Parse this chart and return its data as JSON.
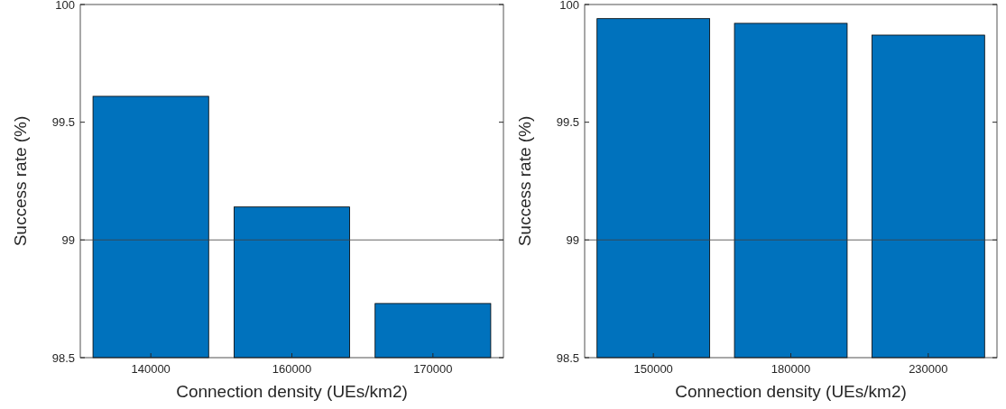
{
  "chart_data": [
    {
      "type": "bar",
      "categories": [
        "140000",
        "160000",
        "170000"
      ],
      "values": [
        99.61,
        99.14,
        98.73
      ],
      "color": "#0072bd",
      "ylim": [
        98.5,
        100
      ],
      "yticks": [
        98.5,
        99,
        99.5,
        100
      ],
      "xlabel": "Connection density (UEs/km2)",
      "ylabel": "Success rate (%)",
      "ref_lines": [
        {
          "axis": "y",
          "value": 99,
          "color": "#404040"
        }
      ]
    },
    {
      "type": "bar",
      "categories": [
        "150000",
        "180000",
        "230000"
      ],
      "values": [
        99.94,
        99.92,
        99.87
      ],
      "color": "#0072bd",
      "ylim": [
        98.5,
        100
      ],
      "yticks": [
        98.5,
        99,
        99.5,
        100
      ],
      "xlabel": "Connection density (UEs/km2)",
      "ylabel": "Success rate (%)",
      "ref_lines": [
        {
          "axis": "y",
          "value": 99,
          "color": "#404040"
        }
      ]
    }
  ]
}
